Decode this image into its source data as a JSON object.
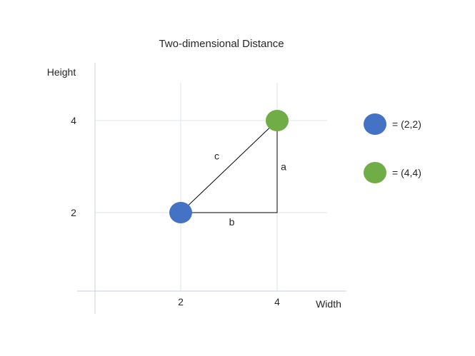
{
  "chart_data": {
    "type": "scatter",
    "title": "Two-dimensional Distance",
    "xlabel": "Width",
    "ylabel": "Height",
    "x_ticks": [
      2,
      4
    ],
    "y_ticks": [
      2,
      4
    ],
    "grid": true,
    "legend_position": "right",
    "points": [
      {
        "x": 2,
        "y": 2,
        "color": "#4472c4",
        "legend": "= (2,2)"
      },
      {
        "x": 4,
        "y": 4,
        "color": "#70ad47",
        "legend": "= (4,4)"
      }
    ],
    "triangle": {
      "vertices": [
        [
          2,
          2
        ],
        [
          4,
          2
        ],
        [
          4,
          4
        ]
      ],
      "side_labels": {
        "a": "a",
        "b": "b",
        "c": "c"
      }
    }
  }
}
